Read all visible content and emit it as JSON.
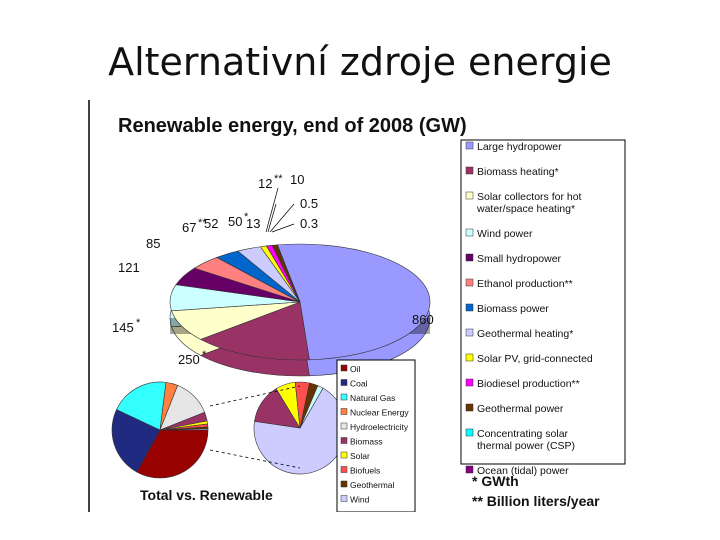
{
  "slide": {
    "title": "Alternativní zdroje energie"
  },
  "chart_data": [
    {
      "type": "pie",
      "title": "Renewable energy, end of 2008 (GW)",
      "categories": [
        "Large hydropower",
        "Biomass heating*",
        "Solar collectors for hot water/space heating*",
        "Wind power",
        "Small hydropower",
        "Ethanol production**",
        "Biomass power",
        "Geothermal heating*",
        "Solar PV, grid-connected",
        "Biodiesel production**",
        "Geothermal power",
        "Concentrating solar thermal power (CSP)",
        "Ocean (tidal) power"
      ],
      "values": [
        860,
        250,
        145,
        121,
        85,
        67,
        52,
        50,
        13,
        12,
        10,
        0.5,
        0.3
      ],
      "value_labels": [
        "860",
        "250",
        "145",
        "121",
        "85",
        "67",
        "52",
        "50",
        "13",
        "12",
        "10",
        "0.5",
        "0.3"
      ],
      "value_marks": [
        "",
        "*",
        "*",
        "",
        "",
        "**",
        "",
        "*",
        "",
        "**",
        "",
        "",
        ""
      ],
      "colors": [
        "#9999ff",
        "#993366",
        "#ffffcc",
        "#ccffff",
        "#660066",
        "#ff8080",
        "#0066cc",
        "#ccccff",
        "#ffff00",
        "#ff00ff",
        "#663300",
        "#00ffff",
        "#800080"
      ]
    },
    {
      "type": "pie",
      "title": "Total vs. Renewable",
      "categories": [
        "Oil",
        "Coal",
        "Natural Gas",
        "Nuclear Energy",
        "Hydroelectricity",
        "Biomass",
        "Solar",
        "Biofuels",
        "Geothermal",
        "Wind"
      ],
      "values": [
        33,
        24,
        20,
        4,
        13,
        3,
        1,
        1,
        0.6,
        0.4
      ],
      "colors": [
        "#990000",
        "#1f2a80",
        "#33ffff",
        "#ff8040",
        "#e6e6e6",
        "#993366",
        "#ffff00",
        "#ff5050",
        "#663300",
        "#ccccff"
      ]
    },
    {
      "type": "pie",
      "title": "",
      "categories": [
        "Hydroelectricity",
        "Biomass",
        "Solar",
        "Biofuels",
        "Geothermal",
        "Wind"
      ],
      "values": [
        69,
        14,
        7,
        5,
        3,
        2
      ],
      "colors": [
        "#ccccff",
        "#993366",
        "#ffff00",
        "#ff5050",
        "#663300",
        "#ccffff"
      ]
    }
  ],
  "footnotes": {
    "line1": "* GWth",
    "line2": "** Billion liters/year"
  }
}
